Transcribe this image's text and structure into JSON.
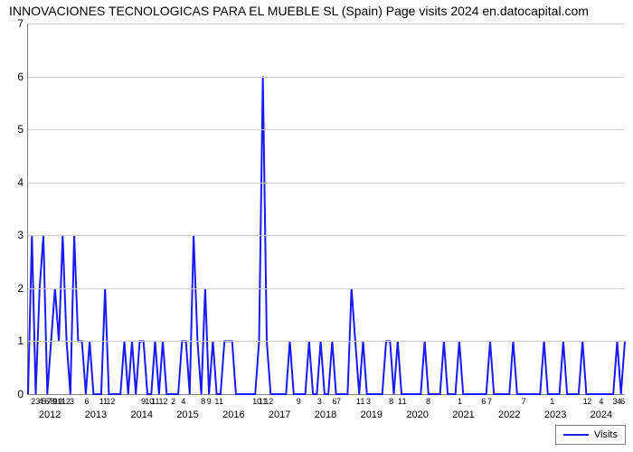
{
  "title": "INNOVACIONES TECNOLOGICAS PARA EL MUEBLE SL (Spain) Page visits 2024 en.datocapital.com",
  "chart": {
    "type": "line",
    "background_color": "#ffffff",
    "grid_color": "#cccccc",
    "axis_color": "#808080",
    "line_color": "#1a1aff",
    "line_width": 2,
    "ylim": [
      0,
      7
    ],
    "ytick_step": 1,
    "title_fontsize": 14,
    "label_fontsize": 11,
    "tick_fontsize": 9,
    "yticks": [
      0,
      1,
      2,
      3,
      4,
      5,
      6,
      7
    ],
    "series": {
      "name": "Visits",
      "values": [
        0,
        3,
        0,
        2,
        3,
        0,
        1,
        2,
        1,
        3,
        1,
        0,
        3,
        1,
        1,
        0,
        1,
        0,
        0,
        0,
        2,
        0,
        0,
        0,
        0,
        1,
        0,
        1,
        0,
        1,
        1,
        0,
        0,
        1,
        0,
        1,
        0,
        0,
        0,
        0,
        1,
        1,
        0,
        3,
        1,
        0,
        2,
        0,
        1,
        0,
        0,
        1,
        1,
        1,
        0,
        0,
        0,
        0,
        0,
        0,
        1,
        6,
        1,
        0,
        0,
        0,
        0,
        0,
        1,
        0,
        0,
        0,
        0,
        1,
        0,
        0,
        1,
        0,
        0,
        1,
        0,
        0,
        0,
        0,
        2,
        1,
        0,
        1,
        0,
        0,
        0,
        0,
        0,
        1,
        1,
        0,
        1,
        0,
        0,
        0,
        0,
        0,
        0,
        1,
        0,
        0,
        0,
        0,
        1,
        0,
        0,
        0,
        1,
        0,
        0,
        0,
        0,
        0,
        0,
        0,
        1,
        0,
        0,
        0,
        0,
        0,
        1,
        0,
        0,
        0,
        0,
        0,
        0,
        0,
        1,
        0,
        0,
        0,
        0,
        1,
        0,
        0,
        0,
        0,
        1,
        0,
        0,
        0,
        0,
        0,
        0,
        0,
        0,
        1,
        0,
        1
      ]
    },
    "xticks_minor": [
      {
        "pos": 0.01,
        "label": "2"
      },
      {
        "pos": 0.018,
        "label": "3"
      },
      {
        "pos": 0.023,
        "label": "4"
      },
      {
        "pos": 0.028,
        "label": "5"
      },
      {
        "pos": 0.033,
        "label": "6"
      },
      {
        "pos": 0.037,
        "label": "7"
      },
      {
        "pos": 0.042,
        "label": "8"
      },
      {
        "pos": 0.047,
        "label": "9"
      },
      {
        "pos": 0.052,
        "label": "10"
      },
      {
        "pos": 0.058,
        "label": "11"
      },
      {
        "pos": 0.065,
        "label": "12"
      },
      {
        "pos": 0.075,
        "label": "3"
      },
      {
        "pos": 0.1,
        "label": "6"
      },
      {
        "pos": 0.128,
        "label": "11"
      },
      {
        "pos": 0.14,
        "label": "12"
      },
      {
        "pos": 0.195,
        "label": "9"
      },
      {
        "pos": 0.205,
        "label": "10"
      },
      {
        "pos": 0.215,
        "label": "11"
      },
      {
        "pos": 0.228,
        "label": "12"
      },
      {
        "pos": 0.245,
        "label": "2"
      },
      {
        "pos": 0.262,
        "label": "4"
      },
      {
        "pos": 0.295,
        "label": "8"
      },
      {
        "pos": 0.305,
        "label": "9"
      },
      {
        "pos": 0.318,
        "label": "1"
      },
      {
        "pos": 0.325,
        "label": "1"
      },
      {
        "pos": 0.385,
        "label": "10"
      },
      {
        "pos": 0.395,
        "label": "11"
      },
      {
        "pos": 0.405,
        "label": "12"
      },
      {
        "pos": 0.455,
        "label": "9"
      },
      {
        "pos": 0.49,
        "label": "3"
      },
      {
        "pos": 0.515,
        "label": "6"
      },
      {
        "pos": 0.522,
        "label": "7"
      },
      {
        "pos": 0.555,
        "label": "1"
      },
      {
        "pos": 0.562,
        "label": "1"
      },
      {
        "pos": 0.572,
        "label": "3"
      },
      {
        "pos": 0.61,
        "label": "8"
      },
      {
        "pos": 0.625,
        "label": "1"
      },
      {
        "pos": 0.632,
        "label": "1"
      },
      {
        "pos": 0.672,
        "label": "8"
      },
      {
        "pos": 0.725,
        "label": "1"
      },
      {
        "pos": 0.765,
        "label": "6"
      },
      {
        "pos": 0.775,
        "label": "7"
      },
      {
        "pos": 0.832,
        "label": "7"
      },
      {
        "pos": 0.88,
        "label": "1"
      },
      {
        "pos": 0.935,
        "label": "1"
      },
      {
        "pos": 0.942,
        "label": "2"
      },
      {
        "pos": 0.962,
        "label": "4"
      },
      {
        "pos": 0.985,
        "label": "3"
      },
      {
        "pos": 0.992,
        "label": "4"
      },
      {
        "pos": 0.998,
        "label": "6"
      }
    ],
    "xticks_years": [
      {
        "pos": 0.038,
        "label": "2012"
      },
      {
        "pos": 0.115,
        "label": "2013"
      },
      {
        "pos": 0.192,
        "label": "2014"
      },
      {
        "pos": 0.269,
        "label": "2015"
      },
      {
        "pos": 0.346,
        "label": "2016"
      },
      {
        "pos": 0.423,
        "label": "2017"
      },
      {
        "pos": 0.5,
        "label": "2018"
      },
      {
        "pos": 0.577,
        "label": "2019"
      },
      {
        "pos": 0.654,
        "label": "2020"
      },
      {
        "pos": 0.731,
        "label": "2021"
      },
      {
        "pos": 0.808,
        "label": "2022"
      },
      {
        "pos": 0.885,
        "label": "2023"
      },
      {
        "pos": 0.962,
        "label": "2024"
      }
    ]
  },
  "legend": {
    "label": "Visits"
  }
}
